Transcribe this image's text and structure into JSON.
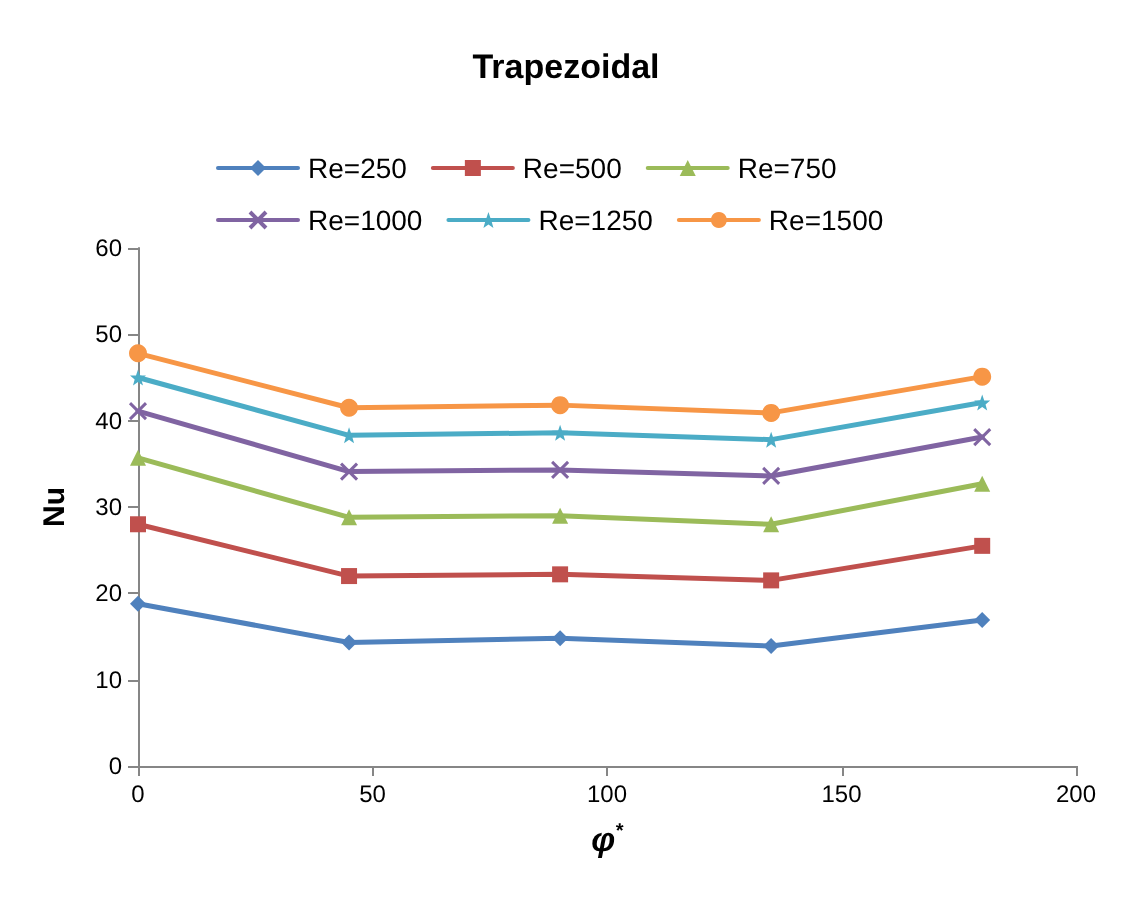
{
  "chart_data": {
    "type": "line",
    "title": "Trapezoidal",
    "xlabel": "φ$^{*}$",
    "ylabel": "Nu",
    "x": [
      0,
      45,
      90,
      135,
      180
    ],
    "xlim": [
      0,
      200
    ],
    "xticks": [
      0,
      50,
      100,
      150,
      200
    ],
    "ylim": [
      0,
      60
    ],
    "yticks": [
      0,
      10,
      20,
      30,
      40,
      50,
      60
    ],
    "grid": false,
    "legend": "top",
    "series": [
      {
        "name": "Re=250",
        "color": "#4f81bd",
        "marker": "diamond",
        "values": [
          18.8,
          14.3,
          14.8,
          13.9,
          16.9
        ]
      },
      {
        "name": "Re=500",
        "color": "#c0504d",
        "marker": "square",
        "values": [
          28.0,
          22.0,
          22.2,
          21.5,
          25.5
        ]
      },
      {
        "name": "Re=750",
        "color": "#9bbb59",
        "marker": "triangle",
        "values": [
          35.7,
          28.8,
          29.0,
          28.0,
          32.7
        ]
      },
      {
        "name": "Re=1000",
        "color": "#8064a2",
        "marker": "cross",
        "values": [
          41.1,
          34.1,
          34.3,
          33.6,
          38.1
        ]
      },
      {
        "name": "Re=1250",
        "color": "#4bacc6",
        "marker": "star",
        "values": [
          45.0,
          38.3,
          38.6,
          37.8,
          42.1
        ]
      },
      {
        "name": "Re=1500",
        "color": "#f79646",
        "marker": "circle",
        "values": [
          47.8,
          41.5,
          41.8,
          40.9,
          45.1
        ]
      }
    ]
  }
}
